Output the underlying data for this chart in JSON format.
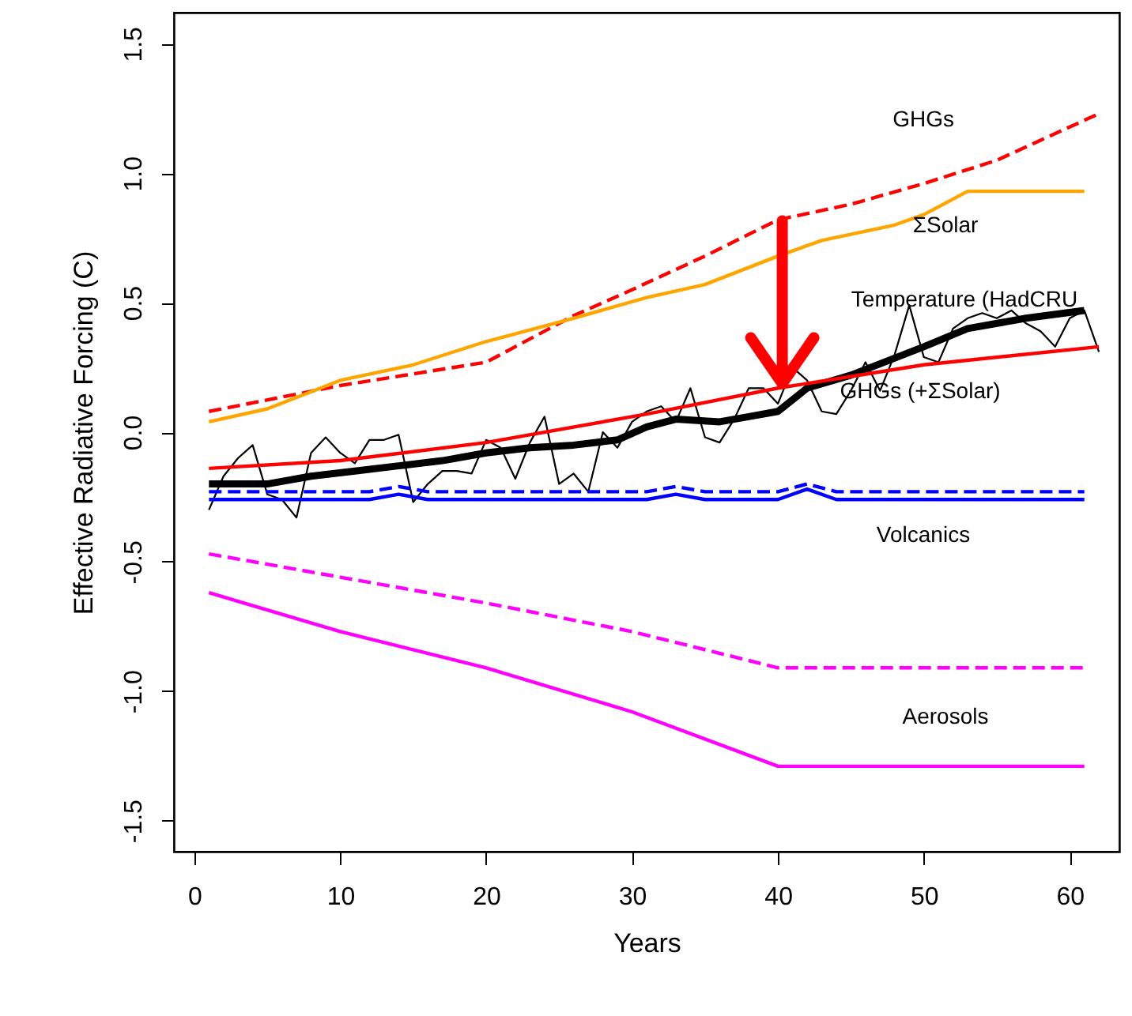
{
  "chart_data": {
    "type": "line",
    "xlabel": "Years",
    "ylabel": "Effective Radiative Forcing (C)",
    "xlim": [
      -1.4,
      63.4
    ],
    "ylim": [
      -1.62,
      1.62
    ],
    "xticks": [
      0,
      10,
      20,
      30,
      40,
      50,
      60
    ],
    "yticks": [
      -1.5,
      {
        "value": -1,
        "label": "-1.0"
      },
      -0.5,
      {
        "value": 0,
        "label": "0.0"
      },
      0.5,
      {
        "value": 1,
        "label": "1.0"
      },
      1.5
    ],
    "grid": false,
    "marker": "none",
    "series": [
      {
        "name": "GHGs",
        "color": "#ff0000",
        "line_style": "dashed",
        "x": [
          1,
          10,
          20,
          26,
          30,
          35,
          40,
          45,
          50,
          55,
          62
        ],
        "values": [
          0.08,
          0.18,
          0.27,
          0.45,
          0.55,
          0.68,
          0.82,
          0.88,
          0.96,
          1.05,
          1.23
        ]
      },
      {
        "name": "ΣSolar",
        "color": "#ffa500",
        "line_style": "solid",
        "x": [
          1,
          5,
          10,
          15,
          20,
          26,
          31,
          35,
          40,
          43,
          48,
          50,
          53,
          61
        ],
        "values": [
          0.04,
          0.09,
          0.2,
          0.26,
          0.35,
          0.44,
          0.52,
          0.57,
          0.68,
          0.74,
          0.8,
          0.84,
          0.93,
          0.93
        ]
      },
      {
        "name": "Temperature (HadCRU",
        "color": "#000000",
        "line_style": "solid",
        "x": [
          1,
          2,
          3,
          4,
          5,
          6,
          7,
          8,
          9,
          10,
          11,
          12,
          13,
          14,
          15,
          16,
          17,
          18,
          19,
          20,
          21,
          22,
          23,
          24,
          25,
          26,
          27,
          28,
          29,
          30,
          31,
          32,
          33,
          34,
          35,
          36,
          37,
          38,
          39,
          40,
          41,
          42,
          43,
          44,
          45,
          46,
          47,
          48,
          49,
          50,
          51,
          52,
          53,
          54,
          55,
          56,
          57,
          58,
          59,
          60,
          61,
          62
        ],
        "values": [
          -0.3,
          -0.17,
          -0.1,
          -0.05,
          -0.24,
          -0.26,
          -0.33,
          -0.08,
          -0.02,
          -0.08,
          -0.12,
          -0.03,
          -0.03,
          -0.01,
          -0.27,
          -0.2,
          -0.15,
          -0.15,
          -0.16,
          -0.03,
          -0.06,
          -0.18,
          -0.04,
          0.06,
          -0.2,
          -0.16,
          -0.23,
          0.0,
          -0.06,
          0.04,
          0.08,
          0.1,
          0.04,
          0.17,
          -0.02,
          -0.04,
          0.05,
          0.17,
          0.17,
          0.11,
          0.25,
          0.2,
          0.08,
          0.07,
          0.16,
          0.27,
          0.16,
          0.3,
          0.49,
          0.29,
          0.27,
          0.4,
          0.44,
          0.46,
          0.44,
          0.47,
          0.42,
          0.39,
          0.33,
          0.44,
          0.47,
          0.31
        ]
      },
      {
        "color": "#000000",
        "line_style": "solid",
        "x": [
          1,
          5,
          8,
          11,
          14,
          17,
          20,
          23,
          26,
          29,
          31,
          33,
          36,
          38,
          40,
          42,
          45,
          50,
          53,
          57,
          61
        ],
        "values": [
          -0.2,
          -0.2,
          -0.17,
          -0.15,
          -0.13,
          -0.11,
          -0.08,
          -0.06,
          -0.05,
          -0.03,
          0.02,
          0.05,
          0.04,
          0.06,
          0.08,
          0.17,
          0.22,
          0.33,
          0.4,
          0.44,
          0.47
        ]
      },
      {
        "name": "GHGs (+ΣSolar)",
        "color": "#ff0000",
        "line_style": "solid",
        "x": [
          1,
          10,
          20,
          31,
          40,
          50,
          62
        ],
        "values": [
          -0.14,
          -0.11,
          -0.04,
          0.07,
          0.17,
          0.26,
          0.33
        ]
      },
      {
        "color": "#0000ff",
        "line_style": "dashed",
        "x": [
          1,
          12,
          14,
          16,
          31,
          33,
          35,
          40,
          42,
          44,
          61
        ],
        "values": [
          -0.23,
          -0.23,
          -0.21,
          -0.23,
          -0.23,
          -0.21,
          -0.23,
          -0.23,
          -0.2,
          -0.23,
          -0.23
        ]
      },
      {
        "name": "Volcanics",
        "color": "#0000ff",
        "line_style": "solid",
        "x": [
          1,
          12,
          14,
          16,
          31,
          33,
          35,
          40,
          42,
          44,
          61
        ],
        "values": [
          -0.26,
          -0.26,
          -0.24,
          -0.26,
          -0.26,
          -0.24,
          -0.26,
          -0.26,
          -0.22,
          -0.26,
          -0.26
        ]
      },
      {
        "color": "#ff00ff",
        "line_style": "dashed",
        "x": [
          1,
          10,
          20,
          30,
          40,
          61
        ],
        "values": [
          -0.47,
          -0.56,
          -0.66,
          -0.77,
          -0.91,
          -0.91
        ]
      },
      {
        "name": "Aerosols",
        "color": "#ff00ff",
        "line_style": "solid",
        "x": [
          1,
          10,
          20,
          30,
          40,
          50,
          61
        ],
        "values": [
          -0.62,
          -0.77,
          -0.91,
          -1.08,
          -1.29,
          -1.29,
          -1.29
        ]
      }
    ]
  }
}
